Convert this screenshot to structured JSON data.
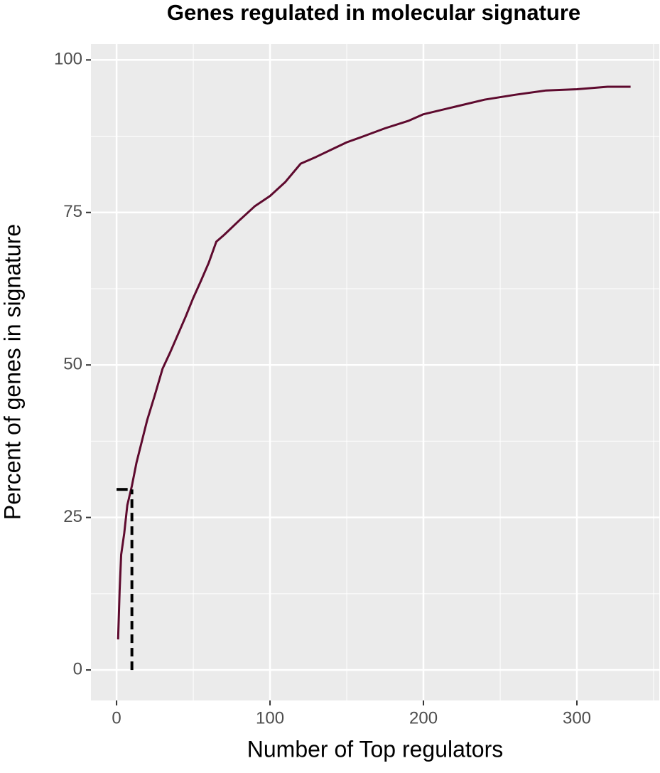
{
  "chart_data": {
    "type": "line",
    "title": "Genes regulated in molecular signature",
    "x_label": "Number of Top regulators",
    "y_label": "Percent of genes in signature",
    "x": [
      1,
      2,
      3,
      5,
      7,
      10,
      13,
      17,
      20,
      25,
      30,
      35,
      40,
      45,
      50,
      55,
      60,
      65,
      70,
      80,
      90,
      100,
      110,
      120,
      130,
      140,
      150,
      160,
      175,
      190,
      200,
      220,
      240,
      260,
      280,
      300,
      320,
      335
    ],
    "series": [
      {
        "name": "Percent of genes",
        "color": "#5e0a2e",
        "values": [
          5,
          13,
          18.9,
          22.4,
          27,
          30.2,
          34,
          38,
          41,
          45.1,
          49.4,
          52.1,
          55,
          57.9,
          61,
          63.8,
          66.7,
          70.2,
          71.3,
          73.7,
          76,
          77.7,
          80,
          83,
          84.1,
          85.3,
          86.5,
          87.4,
          88.8,
          90,
          91.1,
          92.3,
          93.5,
          94.3,
          95,
          95.2,
          95.6,
          95.6
        ]
      }
    ],
    "marker": {
      "x": 10,
      "y": 29.6,
      "x_start": 0
    },
    "xlim": [
      -16.7,
      353.7
    ],
    "ylim": [
      -5.0,
      102.6
    ],
    "xticks": [
      0,
      100,
      200,
      300
    ],
    "yticks": [
      0,
      25,
      50,
      75,
      100
    ],
    "grid": true,
    "background": "#ebebeb"
  }
}
